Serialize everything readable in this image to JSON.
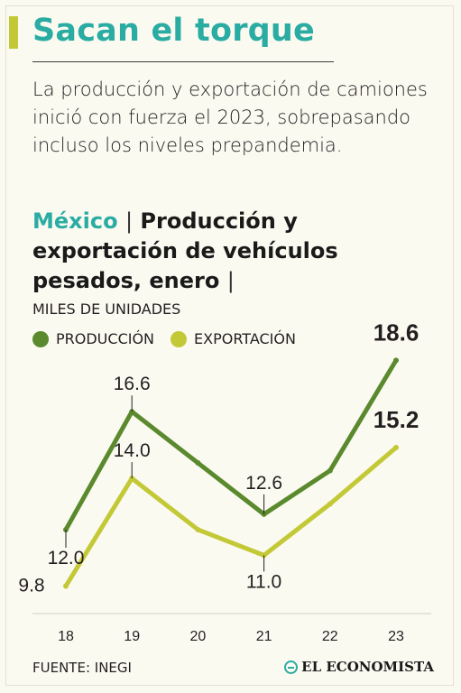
{
  "header": {
    "title": "Sacan el torque",
    "subtitle": "La producción y exportación de camiones inició con fuerza el 2023, sobrepasando incluso los niveles prepandemia."
  },
  "chart_header": {
    "country": "México",
    "separator": "|",
    "title": "Producción y exportación de vehículos pesados, enero",
    "trailing_separator": "|"
  },
  "colors": {
    "accent": "#2aaca3",
    "produccion": "#5a8a2d",
    "exportacion": "#c3c936"
  },
  "footer": {
    "source": "FUENTE: INEGI",
    "brand": "EL ECONOMISTA"
  },
  "chart_data": {
    "type": "line",
    "ylabel": "MILES DE UNIDADES",
    "categories": [
      "18",
      "19",
      "20",
      "21",
      "22",
      "23"
    ],
    "series": [
      {
        "name": "PRODUCCIÓN",
        "values": [
          12.0,
          16.6,
          14.6,
          12.6,
          14.3,
          18.6
        ],
        "labels": [
          "12.0",
          "16.6",
          null,
          "12.6",
          null,
          "18.6"
        ]
      },
      {
        "name": "EXPORTACIÓN",
        "values": [
          9.8,
          14.0,
          12.0,
          11.0,
          13.0,
          15.2
        ],
        "labels": [
          "9.8",
          "14.0",
          null,
          "11.0",
          null,
          "15.2"
        ]
      }
    ],
    "ylim": [
      9.5,
      19
    ],
    "grid": false,
    "legend": "top-left"
  }
}
